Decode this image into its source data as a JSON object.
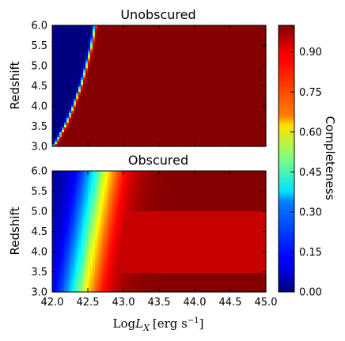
{
  "chart_data": [
    {
      "type": "heatmap",
      "title": "Unobscured",
      "xlabel": "",
      "ylabel": "Redshift",
      "xlim": [
        42.0,
        45.0
      ],
      "ylim": [
        3.0,
        6.0
      ],
      "yticks": [
        "3.0",
        "3.5",
        "4.0",
        "4.5",
        "5.0",
        "5.5",
        "6.0"
      ],
      "xticks": [],
      "transition": {
        "description_points": [
          {
            "z": 3.0,
            "logLx_half": 42.02
          },
          {
            "z": 3.5,
            "logLx_half": 42.18
          },
          {
            "z": 4.0,
            "logLx_half": 42.3
          },
          {
            "z": 4.5,
            "logLx_half": 42.4
          },
          {
            "z": 5.0,
            "logLx_half": 42.48
          },
          {
            "z": 5.5,
            "logLx_half": 42.55
          },
          {
            "z": 6.0,
            "logLx_half": 42.6
          }
        ],
        "width_dex": 0.03
      }
    },
    {
      "type": "heatmap",
      "title": "Obscured",
      "xlabel": "Log L_X [erg s^-1]",
      "ylabel": "Redshift",
      "xlim": [
        42.0,
        45.0
      ],
      "ylim": [
        3.0,
        6.0
      ],
      "yticks": [
        "3.0",
        "3.5",
        "4.0",
        "4.5",
        "5.0",
        "5.5",
        "6.0"
      ],
      "xticks": [
        "42.0",
        "42.5",
        "43.0",
        "43.5",
        "44.0",
        "44.5",
        "45.0"
      ],
      "transition": {
        "description_points": [
          {
            "z": 3.0,
            "logLx_half": 42.38
          },
          {
            "z": 6.0,
            "logLx_half": 42.68
          }
        ],
        "width_dex": 0.45
      },
      "dip_region": {
        "logLx_min": 42.9,
        "logLx_max": 45.0,
        "z_min": 3.5,
        "z_max": 5.0,
        "value": 0.93
      }
    }
  ],
  "colorbar": {
    "label": "Completeness",
    "range": [
      0.0,
      1.0
    ],
    "ticks": [
      "0.00",
      "0.15",
      "0.30",
      "0.45",
      "0.60",
      "0.75",
      "0.90"
    ],
    "colormap": "jet"
  },
  "xlabel_parts": {
    "log": "Log",
    "L": "L",
    "X": "X",
    "unit": "[erg s",
    "exp": "−1",
    "close": "]"
  }
}
